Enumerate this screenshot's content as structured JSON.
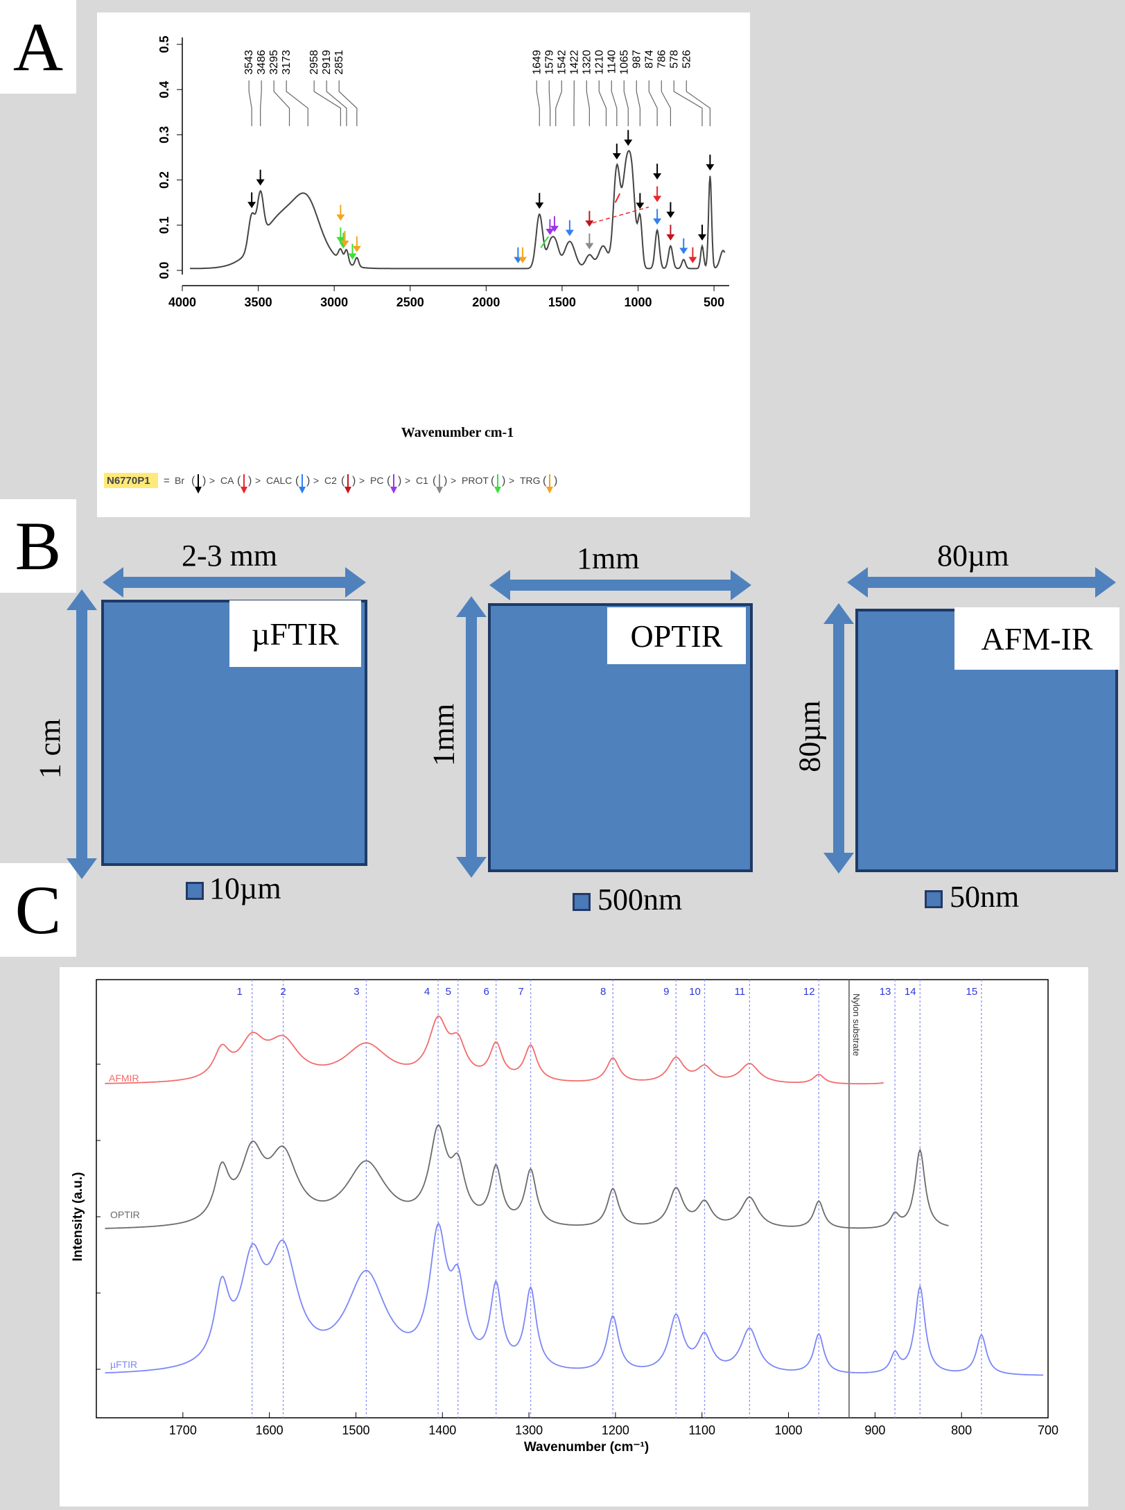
{
  "panels": {
    "a": "A",
    "b": "B",
    "c": "C"
  },
  "colors": {
    "black": "#000000",
    "red": "#e8262b",
    "blue": "#2f7ff2",
    "darkred": "#c0161d",
    "purple": "#9b37e6",
    "grey": "#8a8a8a",
    "green": "#38e03a",
    "orange": "#f3a51c",
    "afmir": "#f36b6b",
    "optir": "#6a6a6a",
    "uftir": "#7b86f6",
    "panelB": "#4f81bd"
  },
  "chart_data": [
    {
      "type": "line",
      "xlabel": "Wavenumber cm-1",
      "ylabel": "",
      "xlim": [
        4000,
        400
      ],
      "ylim": [
        0,
        0.5
      ],
      "x_ticks": [
        4000,
        3500,
        3000,
        2500,
        2000,
        1500,
        1000,
        500
      ],
      "y_ticks": [
        "0.0",
        "0.1",
        "0.2",
        "0.3",
        "0.4",
        "0.5"
      ],
      "peak_labels": [
        "3543",
        "3486",
        "3295",
        "3173",
        "2958",
        "2919",
        "2851",
        "1649",
        "1579",
        "1542",
        "1422",
        "1320",
        "1210",
        "1140",
        "1065",
        "987",
        "874",
        "786",
        "578",
        "526"
      ],
      "legend": {
        "sample": "N6770P1",
        "items": [
          "Br",
          "CA",
          "CALC",
          "C2",
          "PC",
          "C1",
          "PROT",
          "TRG"
        ]
      }
    },
    {
      "type": "line",
      "xlabel": "Wavenumber (cm⁻¹)",
      "ylabel": "Intensity (a.u.)",
      "xlim": [
        1800,
        700
      ],
      "x_ticks": [
        1700,
        1600,
        1500,
        1400,
        1300,
        1200,
        1100,
        1000,
        900,
        800,
        700
      ],
      "series": [
        {
          "name": "AFMIR"
        },
        {
          "name": "OPTIR"
        },
        {
          "name": "µFTIR"
        }
      ],
      "band_labels": [
        "1",
        "2",
        "3",
        "4",
        "5",
        "6",
        "7",
        "8",
        "9",
        "10",
        "11",
        "12",
        "13",
        "14",
        "15"
      ],
      "band_positions": [
        1620,
        1584,
        1488,
        1405,
        1382,
        1338,
        1298,
        1203,
        1130,
        1097,
        1045,
        965,
        877,
        848,
        777
      ],
      "substrate": {
        "label": "Nylon substrate",
        "x": 930
      }
    }
  ],
  "panel_b": {
    "items": [
      {
        "technique": "µFTIR",
        "width": "2-3 mm",
        "height": "1 cm",
        "resolution": "10µm"
      },
      {
        "technique": "OPTIR",
        "width": "1mm",
        "height": "1mm",
        "resolution": "500nm"
      },
      {
        "technique": "AFM-IR",
        "width": "80µm",
        "height": "80µm",
        "resolution": "50nm"
      }
    ]
  }
}
